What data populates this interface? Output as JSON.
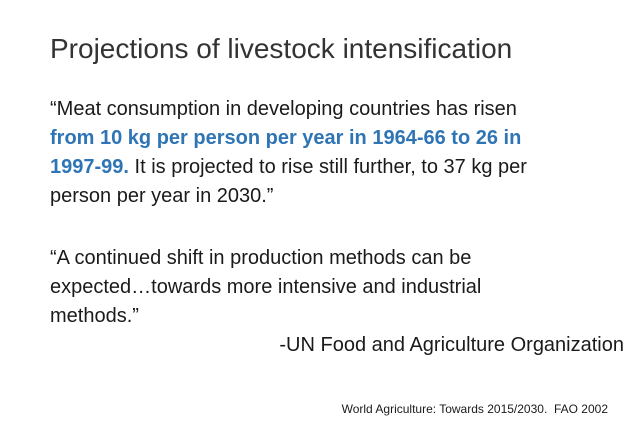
{
  "title": "Projections of livestock intensification",
  "quote_1": {
    "lines": [
      [
        "“Meat consumption in developing countries has risen"
      ],
      [
        "from 10 kg per person per year in 1964-66 to 26 in"
      ],
      [
        "1997-99.",
        " It is projected to rise still further, to 37 kg per"
      ],
      [
        "person per year in 2030.”"
      ]
    ]
  },
  "quote_2": {
    "lines": [
      "“A continued shift in production methods can be",
      "expected…towards more intensive and industrial",
      "methods.”"
    ]
  },
  "attribution": "-UN Food and Agriculture Organization",
  "source": "World Agriculture: Towards 2015/2030.  FAO 2002"
}
